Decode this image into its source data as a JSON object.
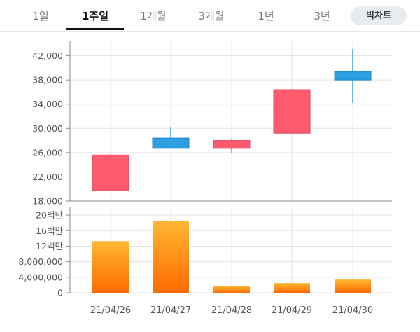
{
  "tabs": {
    "items": [
      "1일",
      "1주일",
      "1개월",
      "3개월",
      "1년",
      "3년"
    ],
    "active": "1주일",
    "bigchart_label": "빅차트"
  },
  "chart_data": [
    {
      "type": "candlestick",
      "categories": [
        "21/04/26",
        "21/04/27",
        "21/04/28",
        "21/04/29",
        "21/04/30"
      ],
      "series": [
        {
          "open": 19700,
          "high": 25700,
          "low": 19700,
          "close": 25600
        },
        {
          "open": 28400,
          "high": 30200,
          "low": 26700,
          "close": 26700
        },
        {
          "open": 26700,
          "high": 28200,
          "low": 25900,
          "close": 28000
        },
        {
          "open": 29200,
          "high": 36500,
          "low": 29200,
          "close": 36400
        },
        {
          "open": 39400,
          "high": 43100,
          "low": 34200,
          "close": 38000
        }
      ],
      "yticks": [
        "18,000",
        "22,000",
        "26,000",
        "30,000",
        "34,000",
        "38,000",
        "42,000"
      ],
      "ylim": [
        18000,
        44500
      ],
      "up_color": "#ff5a6e",
      "down_color": "#2d9fe0",
      "grid": true
    },
    {
      "type": "bar",
      "categories": [
        "21/04/26",
        "21/04/27",
        "21/04/28",
        "21/04/29",
        "21/04/30"
      ],
      "values": [
        13300000,
        18500000,
        1700000,
        2500000,
        3400000
      ],
      "yticks": [
        "0",
        "4,000,000",
        "8,000,000",
        "12백만",
        "16백만",
        "20백만"
      ],
      "ylim": [
        0,
        22000000
      ],
      "bar_color_top": "#ffb833",
      "bar_color_bottom": "#ff6a00",
      "grid": true
    }
  ]
}
